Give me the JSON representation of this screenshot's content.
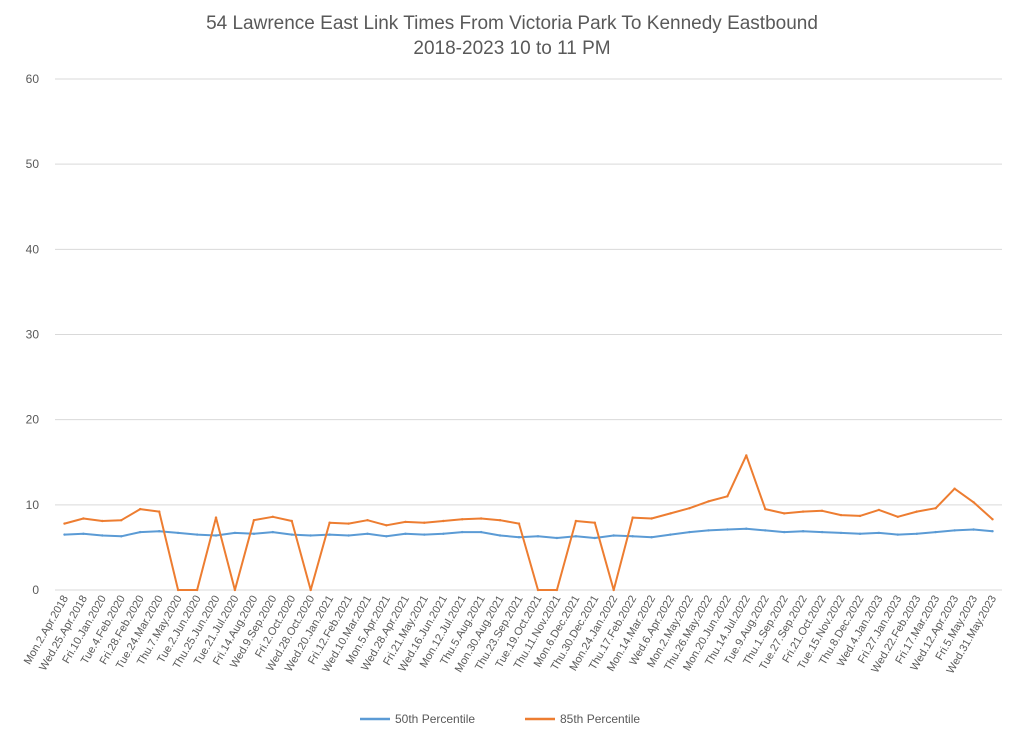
{
  "chart_data": {
    "type": "line",
    "title": "54 Lawrence East Link Times From Victoria Park To Kennedy Eastbound",
    "subtitle": "2018-2023 10 to 11 PM",
    "xlabel": "",
    "ylabel": "",
    "ylim": [
      0,
      60
    ],
    "yticks": [
      0,
      10,
      20,
      30,
      40,
      50,
      60
    ],
    "grid": true,
    "legend": "bottom",
    "categories": [
      "Mon.2.Apr.2018",
      "Wed.25.Apr.2018",
      "Fri.10.Jan.2020",
      "Tue.4.Feb.2020",
      "Fri.28.Feb.2020",
      "Tue.24.Mar.2020",
      "Thu.7.May.2020",
      "Tue.2.Jun.2020",
      "Thu.25.Jun.2020",
      "Tue.21.Jul.2020",
      "Fri.14.Aug.2020",
      "Wed.9.Sep.2020",
      "Fri.2.Oct.2020",
      "Wed.28.Oct.2020",
      "Wed.20.Jan.2021",
      "Fri.12.Feb.2021",
      "Wed.10.Mar.2021",
      "Mon.5.Apr.2021",
      "Wed.28.Apr.2021",
      "Fri.21.May.2021",
      "Wed.16.Jun.2021",
      "Mon.12.Jul.2021",
      "Thu.5.Aug.2021",
      "Mon.30.Aug.2021",
      "Thu.23.Sep.2021",
      "Tue.19.Oct.2021",
      "Thu.11.Nov.2021",
      "Mon.6.Dec.2021",
      "Thu.30.Dec.2021",
      "Mon.24.Jan.2022",
      "Thu.17.Feb.2022",
      "Mon.14.Mar.2022",
      "Wed.6.Apr.2022",
      "Mon.2.May.2022",
      "Thu.26.May.2022",
      "Mon.20.Jun.2022",
      "Thu.14.Jul.2022",
      "Tue.9.Aug.2022",
      "Thu.1.Sep.2022",
      "Tue.27.Sep.2022",
      "Fri.21.Oct.2022",
      "Tue.15.Nov.2022",
      "Thu.8.Dec.2022",
      "Wed.4.Jan.2023",
      "Fri.27.Jan.2023",
      "Wed.22.Feb.2023",
      "Fri.17.Mar.2023",
      "Wed.12.Apr.2023",
      "Fri.5.May.2023",
      "Wed.31.May.2023"
    ],
    "series": [
      {
        "name": "50th Percentile",
        "color": "#5b9bd5",
        "values": [
          6.5,
          6.6,
          6.4,
          6.3,
          6.8,
          6.9,
          6.7,
          6.5,
          6.4,
          6.7,
          6.6,
          6.8,
          6.5,
          6.4,
          6.5,
          6.4,
          6.6,
          6.3,
          6.6,
          6.5,
          6.6,
          6.8,
          6.8,
          6.4,
          6.2,
          6.3,
          6.1,
          6.3,
          6.1,
          6.4,
          6.3,
          6.2,
          6.5,
          6.8,
          7.0,
          7.1,
          7.2,
          7.0,
          6.8,
          6.9,
          6.8,
          6.7,
          6.6,
          6.7,
          6.5,
          6.6,
          6.8,
          7.0,
          7.1,
          6.9
        ]
      },
      {
        "name": "85th Percentile",
        "color": "#ed7d31",
        "values": [
          7.8,
          8.4,
          8.1,
          8.2,
          9.5,
          9.2,
          0,
          0,
          8.5,
          0,
          8.2,
          8.6,
          8.1,
          0,
          7.9,
          7.8,
          8.2,
          7.6,
          8.0,
          7.9,
          8.1,
          8.3,
          8.4,
          8.2,
          7.8,
          0,
          0,
          8.1,
          7.9,
          0,
          8.5,
          8.4,
          9.0,
          9.6,
          10.4,
          11.0,
          15.8,
          9.5,
          9.0,
          9.2,
          9.3,
          8.8,
          8.7,
          9.4,
          8.6,
          9.2,
          9.6,
          11.9,
          10.3,
          8.3
        ]
      }
    ]
  }
}
